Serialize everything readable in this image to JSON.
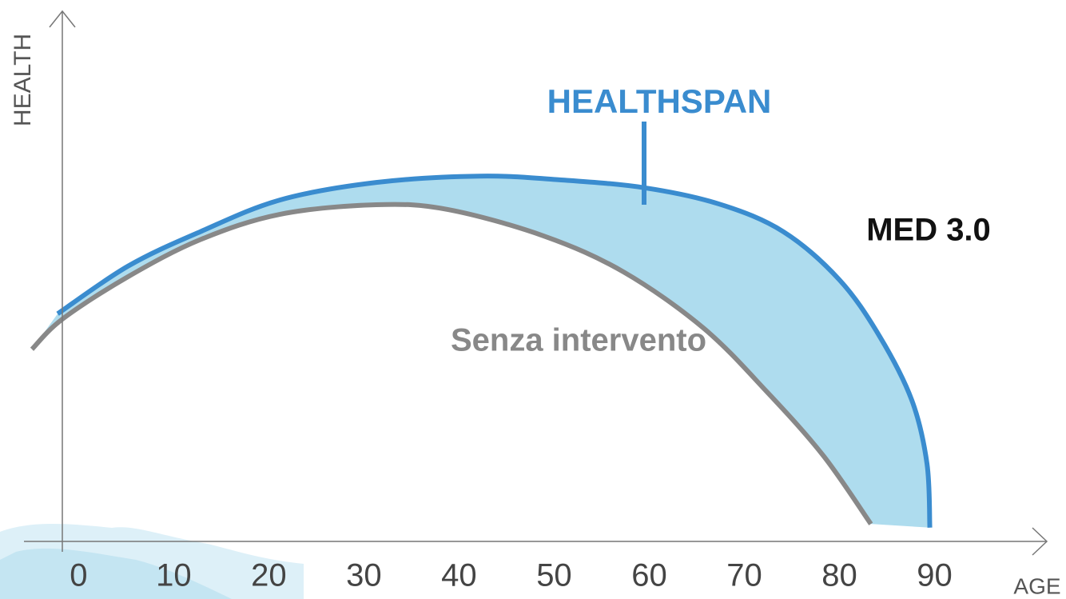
{
  "chart_data": {
    "type": "line",
    "x_label": "AGE",
    "y_label": "HEALTH",
    "annotation": "HEALTHSPAN",
    "xlim": [
      -4.9,
      101.8
    ],
    "ylim": [
      0,
      100
    ],
    "xticks": [
      0,
      10,
      20,
      30,
      40,
      50,
      60,
      70,
      80,
      90
    ],
    "grid": false,
    "fill_between_color": "#aedcee",
    "series": [
      {
        "name": "MED 3.0",
        "color": "#3a8ccf",
        "x": [
          -2.2,
          5.2,
          12.8,
          21.2,
          31.3,
          42.2,
          50.6,
          59.5,
          67.4,
          74.1,
          80,
          84.2,
          87.6,
          89.2,
          89.5
        ],
        "values": [
          43,
          52,
          58.5,
          64.5,
          67.8,
          69,
          68.3,
          66.8,
          63.7,
          58.5,
          49.4,
          38.8,
          26.7,
          14.7,
          2.6
        ]
      },
      {
        "name": "Senza intervento",
        "color": "#888888",
        "x": [
          -4.9,
          -1.7,
          5.2,
          12.8,
          21.2,
          31.3,
          38.8,
          48.9,
          57.3,
          65.7,
          72.4,
          78.3,
          83.3
        ],
        "values": [
          36.3,
          42,
          50,
          57,
          61.8,
          63.6,
          62.7,
          57.7,
          50.9,
          40.3,
          28.2,
          16.2,
          3.3
        ]
      }
    ]
  }
}
